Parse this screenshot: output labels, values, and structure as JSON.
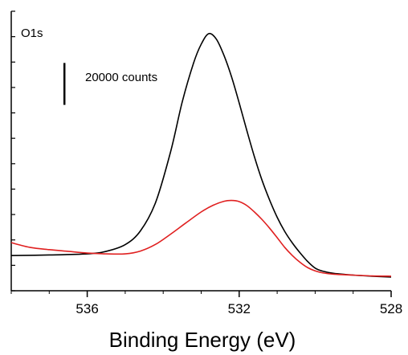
{
  "chart_data": {
    "type": "line",
    "title": "",
    "xlabel": "Binding Energy (eV)",
    "ylabel": "",
    "xlim": [
      538,
      528
    ],
    "x_reversed": true,
    "ylim": [
      0,
      100
    ],
    "y_tick_count": 12,
    "x_ticks": [
      536,
      532,
      528
    ],
    "x_tick_labels": [
      "536",
      "532",
      "528"
    ],
    "grid": false,
    "legend": "none",
    "annotations": {
      "corner_label": "O1s",
      "scale_bar_label": "20000 counts",
      "scale_bar_x": 536.6,
      "scale_bar_y_range": [
        66.5,
        81.5
      ]
    },
    "series": [
      {
        "color": "#000000",
        "x": [
          538.0,
          537.0,
          536.0,
          535.5,
          535.0,
          534.6,
          534.2,
          533.8,
          533.5,
          533.2,
          533.0,
          532.8,
          532.6,
          532.4,
          532.2,
          532.0,
          531.8,
          531.6,
          531.4,
          531.2,
          531.0,
          530.8,
          530.6,
          530.4,
          530.2,
          530.0,
          529.8,
          529.5,
          529.0,
          528.5,
          528.0
        ],
        "y": [
          12.6,
          12.8,
          13.2,
          14.1,
          16.5,
          21.4,
          31.6,
          50.0,
          67.5,
          81.5,
          88.2,
          92.0,
          90.0,
          84.2,
          76.5,
          67.2,
          57.4,
          48.0,
          39.6,
          32.5,
          26.3,
          21.2,
          17.1,
          13.6,
          10.5,
          8.1,
          7.0,
          6.2,
          5.6,
          5.2,
          4.9
        ]
      },
      {
        "color": "#e02020",
        "x": [
          538.0,
          537.5,
          537.0,
          536.5,
          536.0,
          535.5,
          535.0,
          534.6,
          534.2,
          533.8,
          533.4,
          533.0,
          532.7,
          532.4,
          532.2,
          532.0,
          531.8,
          531.6,
          531.4,
          531.2,
          531.0,
          530.8,
          530.6,
          530.4,
          530.2,
          530.0,
          529.8,
          529.5,
          529.0,
          528.5,
          528.0
        ],
        "y": [
          17.2,
          15.5,
          14.7,
          14.1,
          13.5,
          13.2,
          13.2,
          14.2,
          16.6,
          20.3,
          24.3,
          28.2,
          30.5,
          32.0,
          32.3,
          31.9,
          30.5,
          28.2,
          25.5,
          22.4,
          19.0,
          15.5,
          12.6,
          10.2,
          8.3,
          7.1,
          6.4,
          5.9,
          5.6,
          5.3,
          5.2
        ]
      }
    ]
  }
}
